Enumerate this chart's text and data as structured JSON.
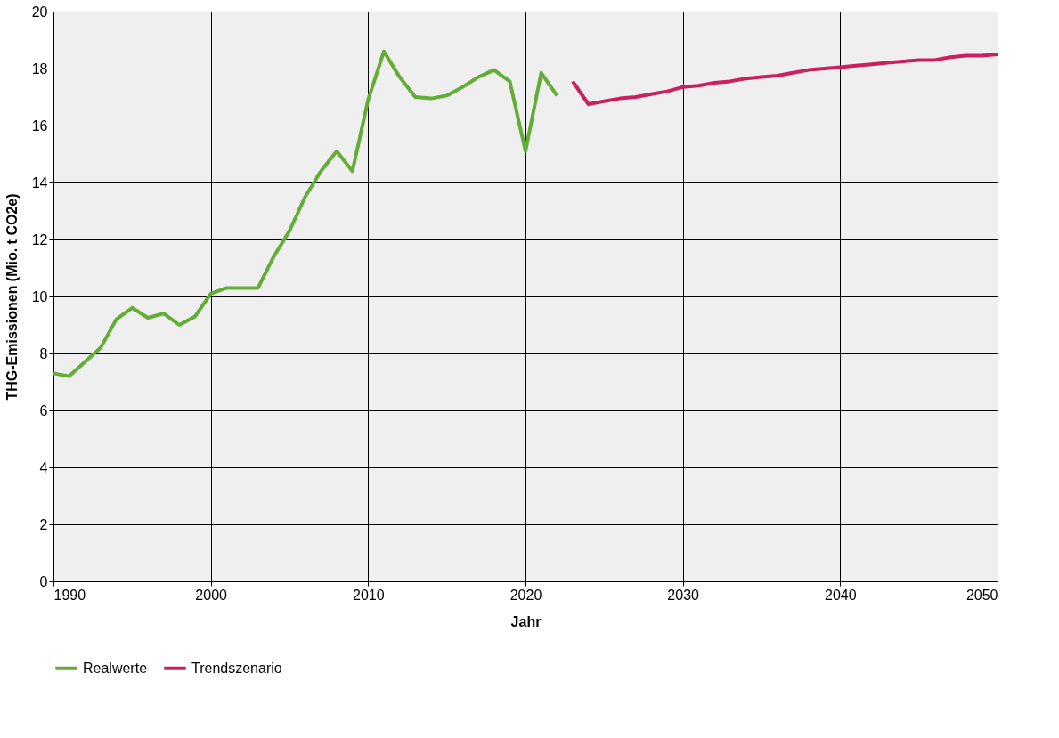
{
  "chart_data": {
    "type": "line",
    "xlabel": "Jahr",
    "ylabel": "THG-Emissionen  (Mio. t CO2e)",
    "xlim": [
      1990,
      2050
    ],
    "xticks": [
      1990,
      2000,
      2010,
      2020,
      2030,
      2040,
      2050
    ],
    "ylim": [
      0,
      20
    ],
    "yticks": [
      0,
      2,
      4,
      6,
      8,
      10,
      12,
      14,
      16,
      18,
      20
    ],
    "grid": true,
    "legend": "bottom",
    "line_style": "solid",
    "marker": "none",
    "series": [
      {
        "name": "Realwerte",
        "color": "#62ad36",
        "x": [
          1990,
          1991,
          1992,
          1993,
          1994,
          1995,
          1996,
          1997,
          1998,
          1999,
          2000,
          2001,
          2002,
          2003,
          2004,
          2005,
          2006,
          2007,
          2008,
          2009,
          2010,
          2011,
          2012,
          2013,
          2014,
          2015,
          2016,
          2017,
          2018,
          2019,
          2020,
          2021,
          2022
        ],
        "values": [
          7.3,
          7.2,
          7.7,
          8.2,
          9.2,
          9.6,
          9.25,
          9.4,
          9.0,
          9.3,
          10.1,
          10.3,
          10.3,
          10.3,
          11.4,
          12.3,
          13.5,
          14.4,
          15.1,
          14.4,
          16.9,
          18.6,
          17.7,
          17.0,
          16.95,
          17.05,
          17.35,
          17.7,
          17.95,
          17.55,
          15.1,
          17.85,
          17.05
        ]
      },
      {
        "name": "Trendszenario",
        "color": "#cc1f5d",
        "x": [
          2023,
          2024,
          2025,
          2026,
          2027,
          2028,
          2029,
          2030,
          2031,
          2032,
          2033,
          2034,
          2035,
          2036,
          2037,
          2038,
          2039,
          2040,
          2041,
          2042,
          2043,
          2044,
          2045,
          2046,
          2047,
          2048,
          2049,
          2050
        ],
        "values": [
          17.55,
          16.75,
          16.85,
          16.95,
          17.0,
          17.1,
          17.2,
          17.35,
          17.4,
          17.5,
          17.55,
          17.65,
          17.7,
          17.75,
          17.85,
          17.95,
          18.0,
          18.05,
          18.1,
          18.15,
          18.2,
          18.25,
          18.3,
          18.3,
          18.4,
          18.45,
          18.45,
          18.5
        ]
      }
    ]
  }
}
